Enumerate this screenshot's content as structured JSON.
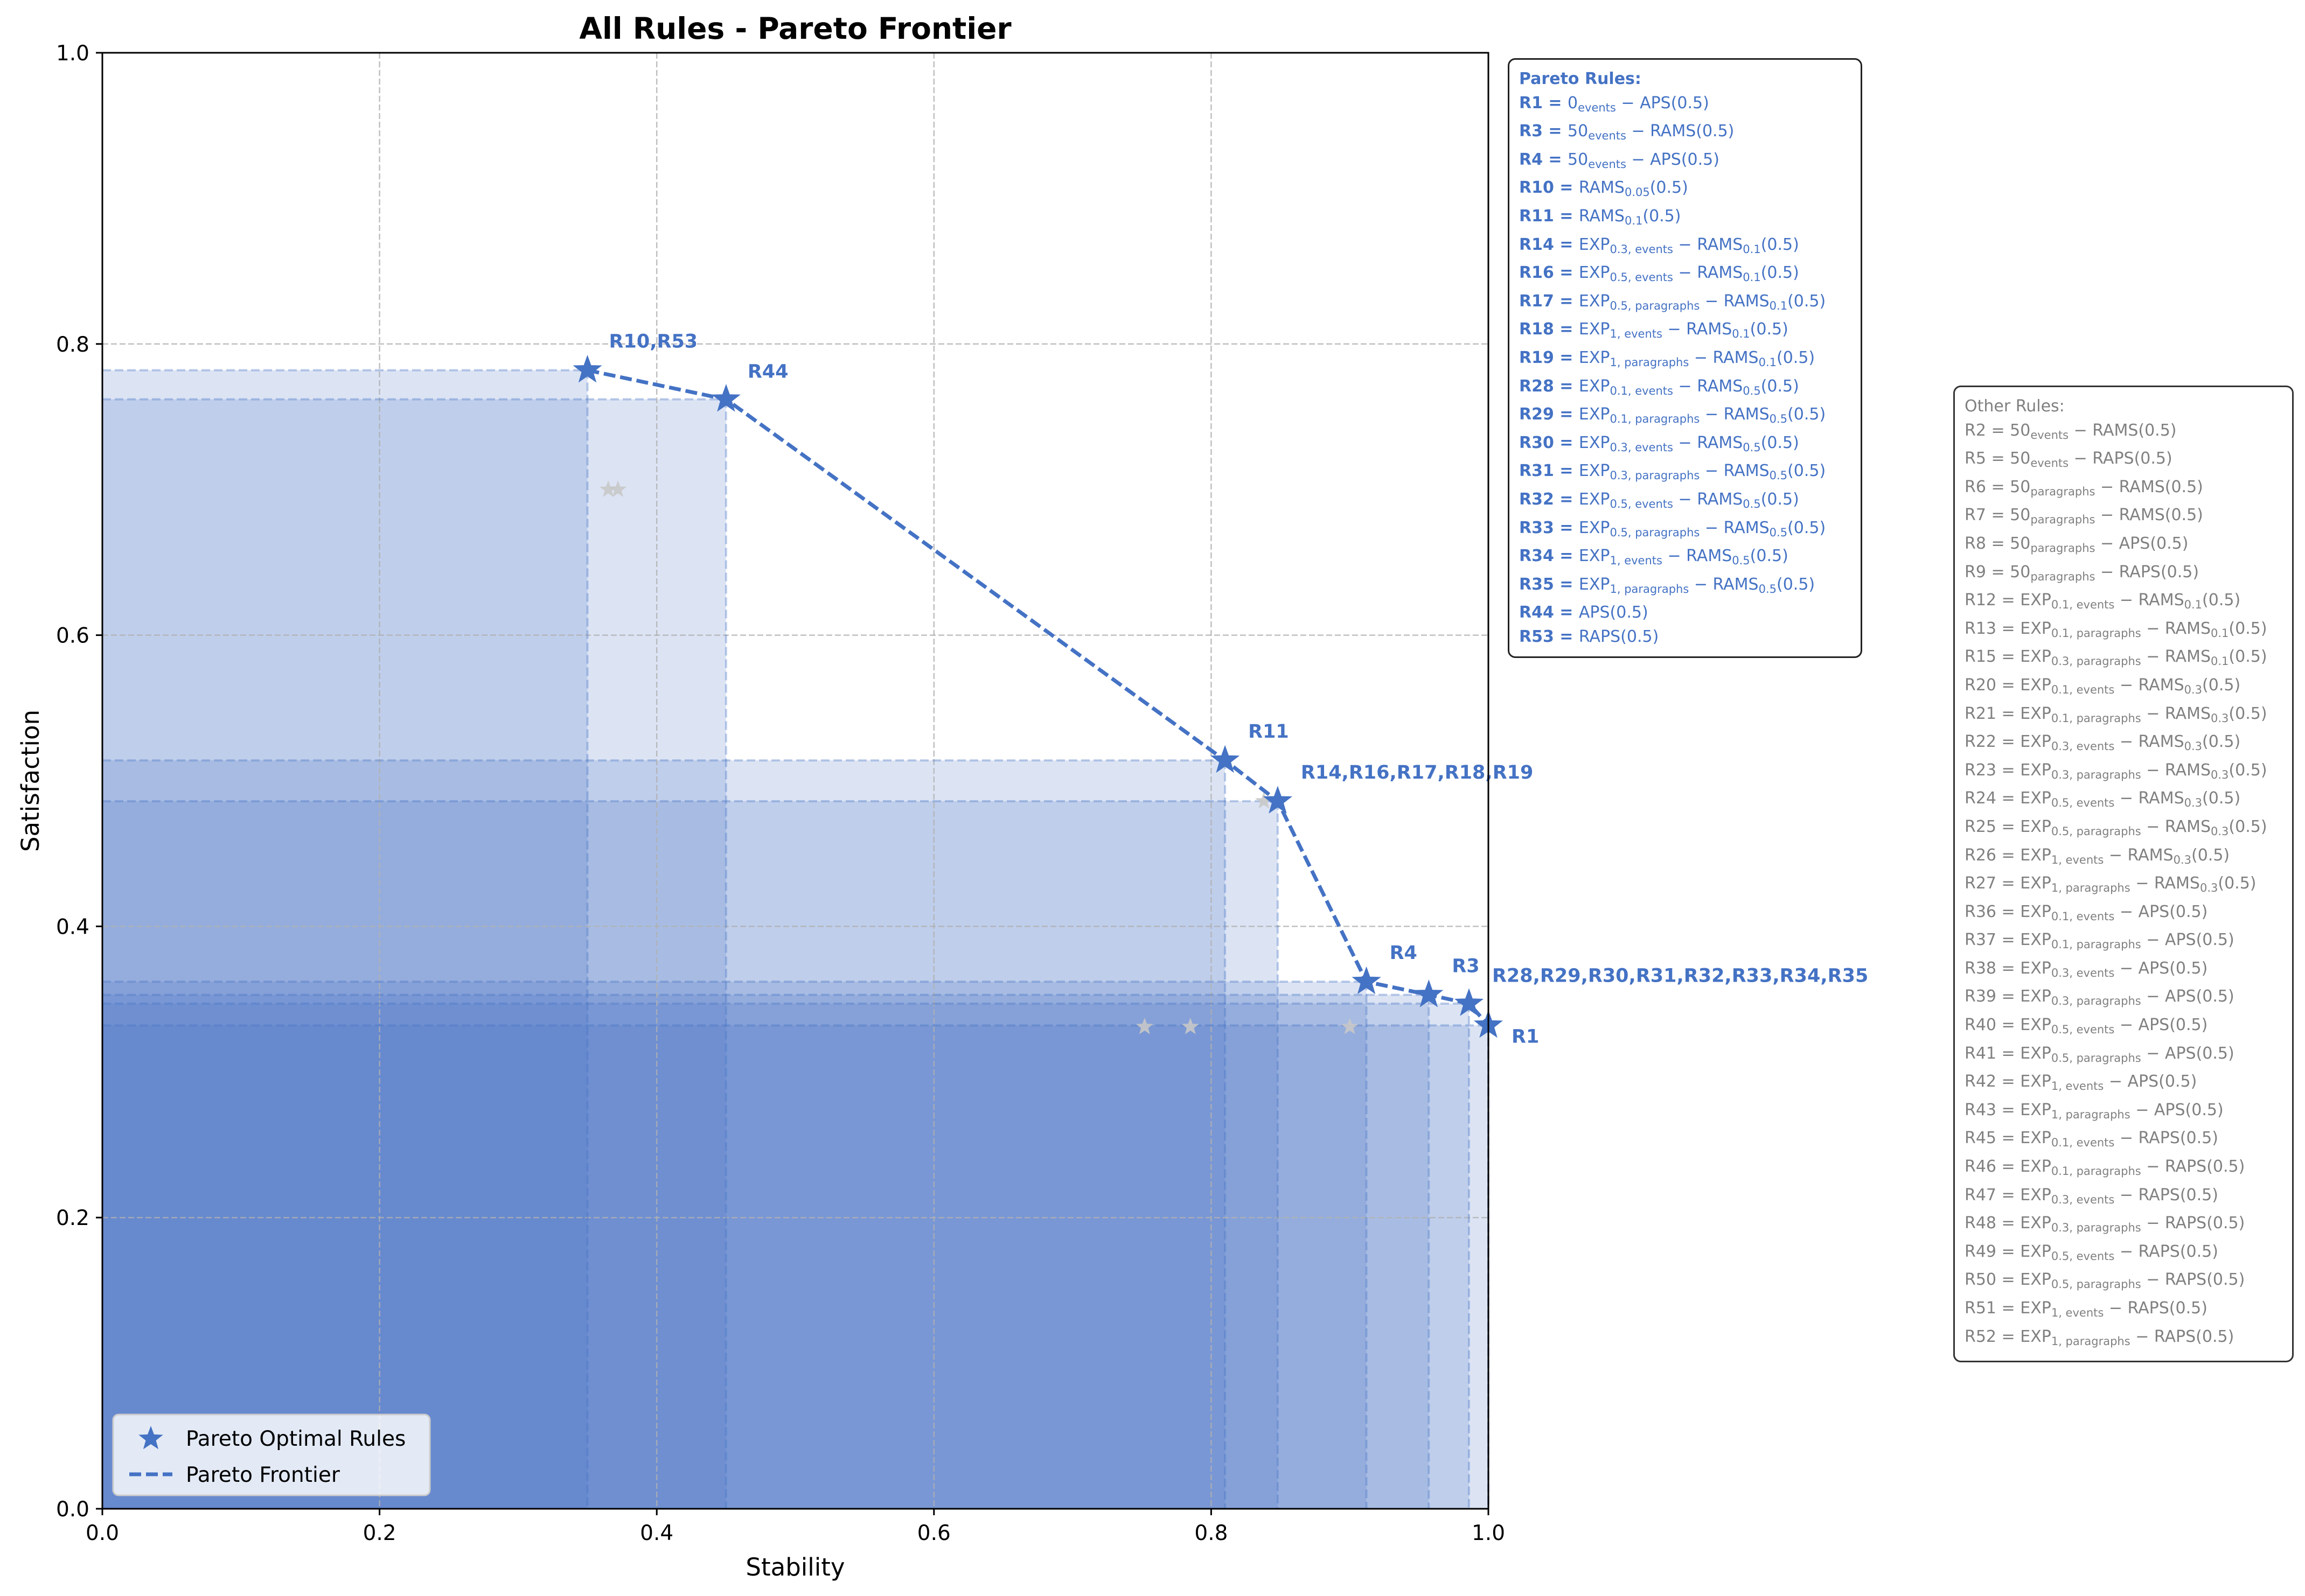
{
  "chart_data": {
    "type": "scatter",
    "title": "All Rules - Pareto Frontier",
    "xlabel": "Stability",
    "ylabel": "Satisfaction",
    "xlim": [
      0,
      1
    ],
    "ylim": [
      0,
      1
    ],
    "xticks": [
      "0.0",
      "0.2",
      "0.4",
      "0.6",
      "0.8",
      "1.0"
    ],
    "yticks": [
      "0.0",
      "0.2",
      "0.4",
      "0.6",
      "0.8",
      "1.0"
    ],
    "grid": true,
    "legend_position": "bottom-left",
    "legend": [
      "Pareto Optimal Rules",
      "Pareto Frontier"
    ],
    "colors": {
      "pareto": "#4472c4",
      "other": "#c8c8c8",
      "region": "#4472c4",
      "text_other": "#808080"
    },
    "pareto_points": [
      {
        "label": "R10,R53",
        "x": 0.35,
        "y": 0.782
      },
      {
        "label": "R44",
        "x": 0.45,
        "y": 0.762
      },
      {
        "label": "R11",
        "x": 0.81,
        "y": 0.514
      },
      {
        "label": "R14,R16,R17,R18,R19",
        "x": 0.848,
        "y": 0.486
      },
      {
        "label": "R4",
        "x": 0.912,
        "y": 0.362
      },
      {
        "label": "R3",
        "x": 0.957,
        "y": 0.353
      },
      {
        "label": "R28,R29,R30,R31,R32,R33,R34,R35",
        "x": 0.986,
        "y": 0.347
      },
      {
        "label": "R1",
        "x": 1.0,
        "y": 0.332
      }
    ],
    "other_points": [
      {
        "x": 0.365,
        "y": 0.7
      },
      {
        "x": 0.372,
        "y": 0.7
      },
      {
        "x": 0.752,
        "y": 0.331
      },
      {
        "x": 0.785,
        "y": 0.331
      },
      {
        "x": 0.9,
        "y": 0.331
      },
      {
        "x": 0.838,
        "y": 0.486
      }
    ]
  },
  "pareto_box": {
    "title": "Pareto Rules:",
    "rules": [
      {
        "id": "R1",
        "parts": [
          [
            "t",
            "0"
          ],
          [
            "s",
            "events"
          ],
          [
            "t",
            " − APS(0.5)"
          ]
        ]
      },
      {
        "id": "R3",
        "parts": [
          [
            "t",
            "50"
          ],
          [
            "s",
            "events"
          ],
          [
            "t",
            " − RAMS(0.5)"
          ]
        ]
      },
      {
        "id": "R4",
        "parts": [
          [
            "t",
            "50"
          ],
          [
            "s",
            "events"
          ],
          [
            "t",
            " − APS(0.5)"
          ]
        ]
      },
      {
        "id": "R10",
        "parts": [
          [
            "t",
            "RAMS"
          ],
          [
            "s",
            "0.05"
          ],
          [
            "t",
            "(0.5)"
          ]
        ]
      },
      {
        "id": "R11",
        "parts": [
          [
            "t",
            "RAMS"
          ],
          [
            "s",
            "0.1"
          ],
          [
            "t",
            "(0.5)"
          ]
        ]
      },
      {
        "id": "R14",
        "parts": [
          [
            "t",
            "EXP"
          ],
          [
            "s",
            "0.3, events"
          ],
          [
            "t",
            " − RAMS"
          ],
          [
            "s",
            "0.1"
          ],
          [
            "t",
            "(0.5)"
          ]
        ]
      },
      {
        "id": "R16",
        "parts": [
          [
            "t",
            "EXP"
          ],
          [
            "s",
            "0.5, events"
          ],
          [
            "t",
            " − RAMS"
          ],
          [
            "s",
            "0.1"
          ],
          [
            "t",
            "(0.5)"
          ]
        ]
      },
      {
        "id": "R17",
        "parts": [
          [
            "t",
            "EXP"
          ],
          [
            "s",
            "0.5, paragraphs"
          ],
          [
            "t",
            " − RAMS"
          ],
          [
            "s",
            "0.1"
          ],
          [
            "t",
            "(0.5)"
          ]
        ]
      },
      {
        "id": "R18",
        "parts": [
          [
            "t",
            "EXP"
          ],
          [
            "s",
            "1, events"
          ],
          [
            "t",
            " − RAMS"
          ],
          [
            "s",
            "0.1"
          ],
          [
            "t",
            "(0.5)"
          ]
        ]
      },
      {
        "id": "R19",
        "parts": [
          [
            "t",
            "EXP"
          ],
          [
            "s",
            "1, paragraphs"
          ],
          [
            "t",
            " − RAMS"
          ],
          [
            "s",
            "0.1"
          ],
          [
            "t",
            "(0.5)"
          ]
        ]
      },
      {
        "id": "R28",
        "parts": [
          [
            "t",
            "EXP"
          ],
          [
            "s",
            "0.1, events"
          ],
          [
            "t",
            " − RAMS"
          ],
          [
            "s",
            "0.5"
          ],
          [
            "t",
            "(0.5)"
          ]
        ]
      },
      {
        "id": "R29",
        "parts": [
          [
            "t",
            "EXP"
          ],
          [
            "s",
            "0.1, paragraphs"
          ],
          [
            "t",
            " − RAMS"
          ],
          [
            "s",
            "0.5"
          ],
          [
            "t",
            "(0.5)"
          ]
        ]
      },
      {
        "id": "R30",
        "parts": [
          [
            "t",
            "EXP"
          ],
          [
            "s",
            "0.3, events"
          ],
          [
            "t",
            " − RAMS"
          ],
          [
            "s",
            "0.5"
          ],
          [
            "t",
            "(0.5)"
          ]
        ]
      },
      {
        "id": "R31",
        "parts": [
          [
            "t",
            "EXP"
          ],
          [
            "s",
            "0.3, paragraphs"
          ],
          [
            "t",
            " − RAMS"
          ],
          [
            "s",
            "0.5"
          ],
          [
            "t",
            "(0.5)"
          ]
        ]
      },
      {
        "id": "R32",
        "parts": [
          [
            "t",
            "EXP"
          ],
          [
            "s",
            "0.5, events"
          ],
          [
            "t",
            " − RAMS"
          ],
          [
            "s",
            "0.5"
          ],
          [
            "t",
            "(0.5)"
          ]
        ]
      },
      {
        "id": "R33",
        "parts": [
          [
            "t",
            "EXP"
          ],
          [
            "s",
            "0.5, paragraphs"
          ],
          [
            "t",
            " − RAMS"
          ],
          [
            "s",
            "0.5"
          ],
          [
            "t",
            "(0.5)"
          ]
        ]
      },
      {
        "id": "R34",
        "parts": [
          [
            "t",
            "EXP"
          ],
          [
            "s",
            "1, events"
          ],
          [
            "t",
            " − RAMS"
          ],
          [
            "s",
            "0.5"
          ],
          [
            "t",
            "(0.5)"
          ]
        ]
      },
      {
        "id": "R35",
        "parts": [
          [
            "t",
            "EXP"
          ],
          [
            "s",
            "1, paragraphs"
          ],
          [
            "t",
            " − RAMS"
          ],
          [
            "s",
            "0.5"
          ],
          [
            "t",
            "(0.5)"
          ]
        ]
      },
      {
        "id": "R44",
        "parts": [
          [
            "t",
            "APS(0.5)"
          ]
        ]
      },
      {
        "id": "R53",
        "parts": [
          [
            "t",
            "RAPS(0.5)"
          ]
        ]
      }
    ]
  },
  "other_box": {
    "title": "Other Rules:",
    "rules": [
      {
        "id": "R2",
        "parts": [
          [
            "t",
            "50"
          ],
          [
            "s",
            "events"
          ],
          [
            "t",
            " − RAMS(0.5)"
          ]
        ]
      },
      {
        "id": "R5",
        "parts": [
          [
            "t",
            "50"
          ],
          [
            "s",
            "events"
          ],
          [
            "t",
            " − RAPS(0.5)"
          ]
        ]
      },
      {
        "id": "R6",
        "parts": [
          [
            "t",
            "50"
          ],
          [
            "s",
            "paragraphs"
          ],
          [
            "t",
            " − RAMS(0.5)"
          ]
        ]
      },
      {
        "id": "R7",
        "parts": [
          [
            "t",
            "50"
          ],
          [
            "s",
            "paragraphs"
          ],
          [
            "t",
            " − RAMS(0.5)"
          ]
        ]
      },
      {
        "id": "R8",
        "parts": [
          [
            "t",
            "50"
          ],
          [
            "s",
            "paragraphs"
          ],
          [
            "t",
            " − APS(0.5)"
          ]
        ]
      },
      {
        "id": "R9",
        "parts": [
          [
            "t",
            "50"
          ],
          [
            "s",
            "paragraphs"
          ],
          [
            "t",
            " − RAPS(0.5)"
          ]
        ]
      },
      {
        "id": "R12",
        "parts": [
          [
            "t",
            "EXP"
          ],
          [
            "s",
            "0.1, events"
          ],
          [
            "t",
            " − RAMS"
          ],
          [
            "s",
            "0.1"
          ],
          [
            "t",
            "(0.5)"
          ]
        ]
      },
      {
        "id": "R13",
        "parts": [
          [
            "t",
            "EXP"
          ],
          [
            "s",
            "0.1, paragraphs"
          ],
          [
            "t",
            " − RAMS"
          ],
          [
            "s",
            "0.1"
          ],
          [
            "t",
            "(0.5)"
          ]
        ]
      },
      {
        "id": "R15",
        "parts": [
          [
            "t",
            "EXP"
          ],
          [
            "s",
            "0.3, paragraphs"
          ],
          [
            "t",
            " − RAMS"
          ],
          [
            "s",
            "0.1"
          ],
          [
            "t",
            "(0.5)"
          ]
        ]
      },
      {
        "id": "R20",
        "parts": [
          [
            "t",
            "EXP"
          ],
          [
            "s",
            "0.1, events"
          ],
          [
            "t",
            " − RAMS"
          ],
          [
            "s",
            "0.3"
          ],
          [
            "t",
            "(0.5)"
          ]
        ]
      },
      {
        "id": "R21",
        "parts": [
          [
            "t",
            "EXP"
          ],
          [
            "s",
            "0.1, paragraphs"
          ],
          [
            "t",
            " − RAMS"
          ],
          [
            "s",
            "0.3"
          ],
          [
            "t",
            "(0.5)"
          ]
        ]
      },
      {
        "id": "R22",
        "parts": [
          [
            "t",
            "EXP"
          ],
          [
            "s",
            "0.3, events"
          ],
          [
            "t",
            " − RAMS"
          ],
          [
            "s",
            "0.3"
          ],
          [
            "t",
            "(0.5)"
          ]
        ]
      },
      {
        "id": "R23",
        "parts": [
          [
            "t",
            "EXP"
          ],
          [
            "s",
            "0.3, paragraphs"
          ],
          [
            "t",
            " − RAMS"
          ],
          [
            "s",
            "0.3"
          ],
          [
            "t",
            "(0.5)"
          ]
        ]
      },
      {
        "id": "R24",
        "parts": [
          [
            "t",
            "EXP"
          ],
          [
            "s",
            "0.5, events"
          ],
          [
            "t",
            " − RAMS"
          ],
          [
            "s",
            "0.3"
          ],
          [
            "t",
            "(0.5)"
          ]
        ]
      },
      {
        "id": "R25",
        "parts": [
          [
            "t",
            "EXP"
          ],
          [
            "s",
            "0.5, paragraphs"
          ],
          [
            "t",
            " − RAMS"
          ],
          [
            "s",
            "0.3"
          ],
          [
            "t",
            "(0.5)"
          ]
        ]
      },
      {
        "id": "R26",
        "parts": [
          [
            "t",
            "EXP"
          ],
          [
            "s",
            "1, events"
          ],
          [
            "t",
            " − RAMS"
          ],
          [
            "s",
            "0.3"
          ],
          [
            "t",
            "(0.5)"
          ]
        ]
      },
      {
        "id": "R27",
        "parts": [
          [
            "t",
            "EXP"
          ],
          [
            "s",
            "1, paragraphs"
          ],
          [
            "t",
            " − RAMS"
          ],
          [
            "s",
            "0.3"
          ],
          [
            "t",
            "(0.5)"
          ]
        ]
      },
      {
        "id": "R36",
        "parts": [
          [
            "t",
            "EXP"
          ],
          [
            "s",
            "0.1, events"
          ],
          [
            "t",
            " − APS(0.5)"
          ]
        ]
      },
      {
        "id": "R37",
        "parts": [
          [
            "t",
            "EXP"
          ],
          [
            "s",
            "0.1, paragraphs"
          ],
          [
            "t",
            " − APS(0.5)"
          ]
        ]
      },
      {
        "id": "R38",
        "parts": [
          [
            "t",
            "EXP"
          ],
          [
            "s",
            "0.3, events"
          ],
          [
            "t",
            " − APS(0.5)"
          ]
        ]
      },
      {
        "id": "R39",
        "parts": [
          [
            "t",
            "EXP"
          ],
          [
            "s",
            "0.3, paragraphs"
          ],
          [
            "t",
            " − APS(0.5)"
          ]
        ]
      },
      {
        "id": "R40",
        "parts": [
          [
            "t",
            "EXP"
          ],
          [
            "s",
            "0.5, events"
          ],
          [
            "t",
            " − APS(0.5)"
          ]
        ]
      },
      {
        "id": "R41",
        "parts": [
          [
            "t",
            "EXP"
          ],
          [
            "s",
            "0.5, paragraphs"
          ],
          [
            "t",
            " − APS(0.5)"
          ]
        ]
      },
      {
        "id": "R42",
        "parts": [
          [
            "t",
            "EXP"
          ],
          [
            "s",
            "1, events"
          ],
          [
            "t",
            " − APS(0.5)"
          ]
        ]
      },
      {
        "id": "R43",
        "parts": [
          [
            "t",
            "EXP"
          ],
          [
            "s",
            "1, paragraphs"
          ],
          [
            "t",
            " − APS(0.5)"
          ]
        ]
      },
      {
        "id": "R45",
        "parts": [
          [
            "t",
            "EXP"
          ],
          [
            "s",
            "0.1, events"
          ],
          [
            "t",
            " − RAPS(0.5)"
          ]
        ]
      },
      {
        "id": "R46",
        "parts": [
          [
            "t",
            "EXP"
          ],
          [
            "s",
            "0.1, paragraphs"
          ],
          [
            "t",
            " − RAPS(0.5)"
          ]
        ]
      },
      {
        "id": "R47",
        "parts": [
          [
            "t",
            "EXP"
          ],
          [
            "s",
            "0.3, events"
          ],
          [
            "t",
            " − RAPS(0.5)"
          ]
        ]
      },
      {
        "id": "R48",
        "parts": [
          [
            "t",
            "EXP"
          ],
          [
            "s",
            "0.3, paragraphs"
          ],
          [
            "t",
            " − RAPS(0.5)"
          ]
        ]
      },
      {
        "id": "R49",
        "parts": [
          [
            "t",
            "EXP"
          ],
          [
            "s",
            "0.5, events"
          ],
          [
            "t",
            " − RAPS(0.5)"
          ]
        ]
      },
      {
        "id": "R50",
        "parts": [
          [
            "t",
            "EXP"
          ],
          [
            "s",
            "0.5, paragraphs"
          ],
          [
            "t",
            " − RAPS(0.5)"
          ]
        ]
      },
      {
        "id": "R51",
        "parts": [
          [
            "t",
            "EXP"
          ],
          [
            "s",
            "1, events"
          ],
          [
            "t",
            " − RAPS(0.5)"
          ]
        ]
      },
      {
        "id": "R52",
        "parts": [
          [
            "t",
            "EXP"
          ],
          [
            "s",
            "1, paragraphs"
          ],
          [
            "t",
            " − RAPS(0.5)"
          ]
        ]
      }
    ]
  }
}
